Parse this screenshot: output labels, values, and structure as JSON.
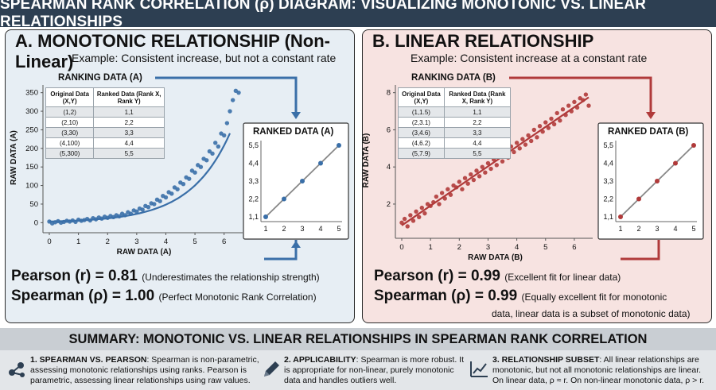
{
  "title": "SPEARMAN RANK CORRELATION (ρ) DIAGRAM: VISUALIZING MONOTONIC VS. LINEAR RELATIONSHIPS",
  "panel_a": {
    "title": "A. MONOTONIC RELATIONSHIP (Non-Linear)",
    "subtitle": "Example: Consistent increase, but not a constant rate",
    "ranking_label": "RANKING DATA (A)",
    "ranked_label": "RANKED DATA (A)",
    "table_headers": [
      "Original Data (X,Y)",
      "Ranked Data (Rank X, Rank Y)"
    ],
    "table_rows": [
      [
        "(1,2)",
        "1,1"
      ],
      [
        "(2,10)",
        "2,2"
      ],
      [
        "(3,30)",
        "3,3"
      ],
      [
        "(4,100)",
        "4,4"
      ],
      [
        "(5,300)",
        "5,5"
      ]
    ],
    "pearson": "Pearson (r) = 0.81",
    "pearson_note": "(Underestimates the relationship strength)",
    "spearman": "Spearman (ρ) = 1.00",
    "spearman_note": "(Perfect Monotonic Rank Correlation)"
  },
  "panel_b": {
    "title": "B. LINEAR RELATIONSHIP",
    "subtitle": "Example: Consistent increase at a constant rate",
    "ranking_label": "RANKING DATA (B)",
    "ranked_label": "RANKED DATA (B)",
    "table_headers": [
      "Original Data (X,Y)",
      "Ranked Data (Rank X, Rank Y)"
    ],
    "table_rows": [
      [
        "(1,1.5)",
        "1,1"
      ],
      [
        "(2,3.1)",
        "2,2"
      ],
      [
        "(3,4.6)",
        "3,3"
      ],
      [
        "(4,6.2)",
        "4,4"
      ],
      [
        "(5,7.9)",
        "5,5"
      ]
    ],
    "pearson": "Pearson (r) = 0.99",
    "pearson_note": "(Excellent fit for linear data)",
    "spearman": "Spearman (ρ) = 0.99",
    "spearman_note_1": "(Equally excellent fit for monotonic",
    "spearman_note_2": "data, linear data is a subset of monotonic data)"
  },
  "summary": {
    "title": "SUMMARY: MONOTONIC VS. LINEAR RELATIONSHIPS IN SPEARMAN RANK CORRELATION",
    "items": [
      {
        "head": "1. SPEARMAN VS. PEARSON",
        "l1": ": Spearman is non-parametric,",
        "l2": "assessing monotonic relationships using ranks. Pearson is",
        "l3": "parametric, assessing linear relationships using raw values."
      },
      {
        "head": "2. APPLICABILITY",
        "l1": ": Spearman is more robust. It",
        "l2": "is appropriate for non-linear, purely monotonic",
        "l3": "data and handles outliers well."
      },
      {
        "head": "3. RELATIONSHIP SUBSET",
        "l1": ": All linear relationships are",
        "l2": "monotonic, but not all monotonic relationships are linear.",
        "l3": "On linear data, ρ ≈ r. On non-linear monotonic data, ρ > r."
      }
    ],
    "icons": [
      "network-nodes-icon",
      "pencil-icon",
      "trend-chart-icon"
    ]
  },
  "colors": {
    "blue": "#3a6fa8",
    "red": "#b03a3a",
    "dark": "#2d3f52"
  },
  "chart_data": [
    {
      "type": "scatter",
      "name": "monotonic-scatter",
      "xlabel": "RAW DATA (A)",
      "ylabel": "RAW DATA (A)",
      "xlim": [
        0,
        6.5
      ],
      "ylim": [
        -10,
        360
      ],
      "xticks": [
        0,
        1,
        2,
        3,
        4,
        5,
        6
      ],
      "yticks": [
        0,
        50,
        100,
        150,
        200,
        250,
        300,
        350
      ],
      "fit": "exponential curve",
      "points": [
        [
          0.0,
          3
        ],
        [
          0.1,
          -2
        ],
        [
          0.2,
          1
        ],
        [
          0.3,
          4
        ],
        [
          0.4,
          0
        ],
        [
          0.5,
          2
        ],
        [
          0.6,
          5
        ],
        [
          0.7,
          3
        ],
        [
          0.8,
          6
        ],
        [
          0.9,
          2
        ],
        [
          1.0,
          8
        ],
        [
          1.1,
          5
        ],
        [
          1.2,
          7
        ],
        [
          1.3,
          10
        ],
        [
          1.4,
          6
        ],
        [
          1.5,
          12
        ],
        [
          1.6,
          9
        ],
        [
          1.7,
          14
        ],
        [
          1.8,
          11
        ],
        [
          1.9,
          16
        ],
        [
          2.0,
          13
        ],
        [
          2.1,
          18
        ],
        [
          2.2,
          15
        ],
        [
          2.3,
          20
        ],
        [
          2.4,
          17
        ],
        [
          2.5,
          24
        ],
        [
          2.6,
          20
        ],
        [
          2.7,
          28
        ],
        [
          2.8,
          24
        ],
        [
          2.9,
          33
        ],
        [
          3.0,
          30
        ],
        [
          3.1,
          38
        ],
        [
          3.2,
          35
        ],
        [
          3.3,
          45
        ],
        [
          3.4,
          42
        ],
        [
          3.5,
          52
        ],
        [
          3.6,
          50
        ],
        [
          3.7,
          62
        ],
        [
          3.8,
          58
        ],
        [
          3.9,
          72
        ],
        [
          4.0,
          68
        ],
        [
          4.1,
          82
        ],
        [
          4.2,
          78
        ],
        [
          4.3,
          95
        ],
        [
          4.4,
          90
        ],
        [
          4.5,
          108
        ],
        [
          4.6,
          104
        ],
        [
          4.7,
          122
        ],
        [
          4.8,
          118
        ],
        [
          4.9,
          140
        ],
        [
          5.0,
          135
        ],
        [
          5.1,
          155
        ],
        [
          5.2,
          150
        ],
        [
          5.3,
          172
        ],
        [
          5.4,
          168
        ],
        [
          5.5,
          192
        ],
        [
          5.6,
          186
        ],
        [
          5.7,
          215
        ],
        [
          5.8,
          205
        ],
        [
          5.9,
          240
        ],
        [
          6.0,
          235
        ],
        [
          6.1,
          268
        ],
        [
          6.2,
          300
        ],
        [
          6.3,
          330
        ],
        [
          6.4,
          355
        ],
        [
          6.5,
          350
        ]
      ]
    },
    {
      "type": "line",
      "name": "ranked-a",
      "xticks": [
        1,
        2,
        3,
        4,
        5
      ],
      "yticklabels": [
        "1,1",
        "2,2",
        "3,3",
        "4,4",
        "5,5"
      ],
      "points": [
        [
          1,
          1
        ],
        [
          2,
          2
        ],
        [
          3,
          3
        ],
        [
          4,
          4
        ],
        [
          5,
          5
        ]
      ]
    },
    {
      "type": "scatter",
      "name": "linear-scatter",
      "xlabel": "RAW DATA (B)",
      "ylabel": "RAW DATA (B)",
      "xlim": [
        0,
        6.5
      ],
      "ylim": [
        0.5,
        8.2
      ],
      "xticks": [
        0,
        1,
        2,
        3,
        4,
        5,
        6
      ],
      "yticks": [
        2,
        4,
        6,
        8
      ],
      "fit": "linear",
      "points": [
        [
          0.0,
          1.0
        ],
        [
          0.1,
          1.2
        ],
        [
          0.2,
          0.8
        ],
        [
          0.3,
          1.4
        ],
        [
          0.4,
          1.1
        ],
        [
          0.5,
          1.6
        ],
        [
          0.6,
          1.3
        ],
        [
          0.7,
          1.8
        ],
        [
          0.8,
          1.5
        ],
        [
          0.9,
          2.0
        ],
        [
          1.0,
          1.9
        ],
        [
          1.1,
          2.1
        ],
        [
          1.2,
          2.4
        ],
        [
          1.3,
          2.0
        ],
        [
          1.4,
          2.6
        ],
        [
          1.5,
          2.3
        ],
        [
          1.6,
          2.8
        ],
        [
          1.7,
          2.5
        ],
        [
          1.8,
          3.0
        ],
        [
          1.9,
          2.9
        ],
        [
          2.0,
          3.2
        ],
        [
          2.1,
          2.8
        ],
        [
          2.2,
          3.4
        ],
        [
          2.3,
          3.1
        ],
        [
          2.4,
          3.6
        ],
        [
          2.5,
          3.3
        ],
        [
          2.6,
          3.8
        ],
        [
          2.7,
          3.5
        ],
        [
          2.8,
          4.0
        ],
        [
          2.9,
          3.7
        ],
        [
          3.0,
          4.2
        ],
        [
          3.1,
          3.9
        ],
        [
          3.2,
          4.4
        ],
        [
          3.3,
          4.1
        ],
        [
          3.4,
          4.6
        ],
        [
          3.5,
          4.3
        ],
        [
          3.6,
          4.9
        ],
        [
          3.7,
          4.5
        ],
        [
          3.8,
          5.1
        ],
        [
          3.9,
          4.8
        ],
        [
          4.0,
          5.3
        ],
        [
          4.1,
          5.0
        ],
        [
          4.2,
          5.5
        ],
        [
          4.3,
          5.2
        ],
        [
          4.4,
          5.7
        ],
        [
          4.5,
          5.4
        ],
        [
          4.6,
          6.0
        ],
        [
          4.7,
          5.6
        ],
        [
          4.8,
          6.2
        ],
        [
          4.9,
          5.9
        ],
        [
          5.0,
          6.4
        ],
        [
          5.1,
          6.1
        ],
        [
          5.2,
          6.6
        ],
        [
          5.3,
          6.3
        ],
        [
          5.4,
          6.9
        ],
        [
          5.5,
          6.5
        ],
        [
          5.6,
          7.1
        ],
        [
          5.7,
          6.8
        ],
        [
          5.8,
          7.3
        ],
        [
          5.9,
          7.0
        ],
        [
          6.0,
          7.5
        ],
        [
          6.1,
          7.2
        ],
        [
          6.2,
          7.7
        ],
        [
          6.3,
          7.6
        ],
        [
          6.4,
          7.9
        ],
        [
          6.5,
          7.3
        ]
      ]
    },
    {
      "type": "line",
      "name": "ranked-b",
      "xticks": [
        1,
        2,
        3,
        4,
        5
      ],
      "yticklabels": [
        "1,1",
        "2,2",
        "3,3",
        "4,4",
        "5,5"
      ],
      "points": [
        [
          1,
          1
        ],
        [
          2,
          2
        ],
        [
          3,
          3
        ],
        [
          4,
          4
        ],
        [
          5,
          5
        ]
      ]
    }
  ]
}
